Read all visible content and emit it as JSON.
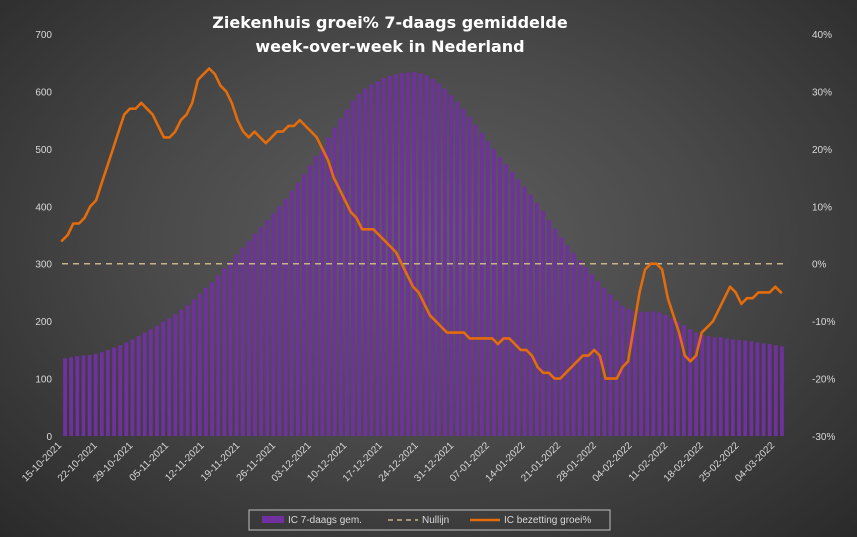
{
  "chart_data": {
    "type": "bar+line",
    "title_line1": "Ziekenhuis groei% 7-daags gemiddelde",
    "title_line2": "week-over-week in Nederland",
    "y_left": {
      "min": 0,
      "max": 700,
      "step": 100,
      "ticks": [
        "0",
        "100",
        "200",
        "300",
        "400",
        "500",
        "600",
        "700"
      ]
    },
    "y_right": {
      "min": -30,
      "max": 40,
      "step": 10,
      "ticks": [
        "-30%",
        "-20%",
        "-10%",
        "0%",
        "10%",
        "20%",
        "30%",
        "40%"
      ]
    },
    "x_labels": [
      "15-10-2021",
      "22-10-2021",
      "29-10-2021",
      "05-11-2021",
      "12-11-2021",
      "19-11-2021",
      "26-11-2021",
      "03-12-2021",
      "10-12-2021",
      "17-12-2021",
      "24-12-2021",
      "31-12-2021",
      "07-01-2022",
      "14-01-2022",
      "21-01-2022",
      "28-01-2022",
      "04-02-2022",
      "11-02-2022",
      "18-02-2022",
      "25-02-2022",
      "04-03-2022"
    ],
    "series": [
      {
        "name": "IC 7-daags gem.",
        "type": "bar",
        "axis": "left",
        "color": "#7030a0",
        "values": [
          135,
          137,
          139,
          140,
          141,
          143,
          146,
          150,
          154,
          158,
          163,
          168,
          174,
          180,
          186,
          192,
          199,
          205,
          212,
          220,
          228,
          238,
          248,
          258,
          268,
          280,
          292,
          304,
          316,
          328,
          340,
          352,
          364,
          376,
          388,
          400,
          413,
          427,
          441,
          456,
          472,
          488,
          504,
          520,
          537,
          553,
          569,
          584,
          596,
          605,
          612,
          618,
          623,
          627,
          630,
          632,
          633,
          634,
          632,
          628,
          622,
          614,
          605,
          594,
          582,
          570,
          556,
          542,
          528,
          514,
          500,
          486,
          473,
          460,
          447,
          434,
          420,
          406,
          392,
          376,
          361,
          346,
          332,
          319,
          306,
          294,
          282,
          270,
          258,
          247,
          236,
          227,
          221,
          218,
          216,
          216,
          217,
          215,
          211,
          205,
          199,
          193,
          186,
          180,
          176,
          174,
          172,
          172,
          170,
          168,
          167,
          166,
          165,
          163,
          161,
          160,
          158,
          156
        ]
      },
      {
        "name": "Nullijn",
        "type": "line",
        "axis": "right",
        "color": "#c9b48a",
        "dash": true,
        "values": [
          0
        ]
      },
      {
        "name": "IC bezetting groei%",
        "type": "line",
        "axis": "right",
        "color": "#e46c0a",
        "values": [
          4,
          5,
          7,
          7,
          8,
          10,
          11,
          14,
          17,
          20,
          23,
          26,
          27,
          27,
          28,
          27,
          26,
          24,
          22,
          22,
          23,
          25,
          26,
          28,
          32,
          33,
          34,
          33,
          31,
          30,
          28,
          25,
          23,
          22,
          23,
          22,
          21,
          22,
          23,
          23,
          24,
          24,
          25,
          24,
          23,
          22,
          20,
          18,
          15,
          13,
          11,
          9,
          8,
          6,
          6,
          6,
          5,
          4,
          3,
          2,
          0,
          -2,
          -4,
          -5,
          -7,
          -9,
          -10,
          -11,
          -12,
          -12,
          -12,
          -12,
          -13,
          -13,
          -13,
          -13,
          -13,
          -14,
          -13,
          -13,
          -14,
          -15,
          -15,
          -16,
          -18,
          -19,
          -19,
          -20,
          -20,
          -19,
          -18,
          -17,
          -16,
          -16,
          -15,
          -16,
          -20,
          -20,
          -20,
          -18,
          -17,
          -11,
          -5,
          -1,
          0,
          0,
          -1,
          -6,
          -9,
          -12,
          -16,
          -17,
          -16,
          -12,
          -11,
          -10,
          -8,
          -6,
          -4,
          -5,
          -7,
          -6,
          -6,
          -5,
          -5,
          -5,
          -4,
          -5
        ]
      }
    ],
    "legend": [
      "IC 7-daags gem.",
      "Nullijn",
      "IC bezetting groei%"
    ]
  }
}
